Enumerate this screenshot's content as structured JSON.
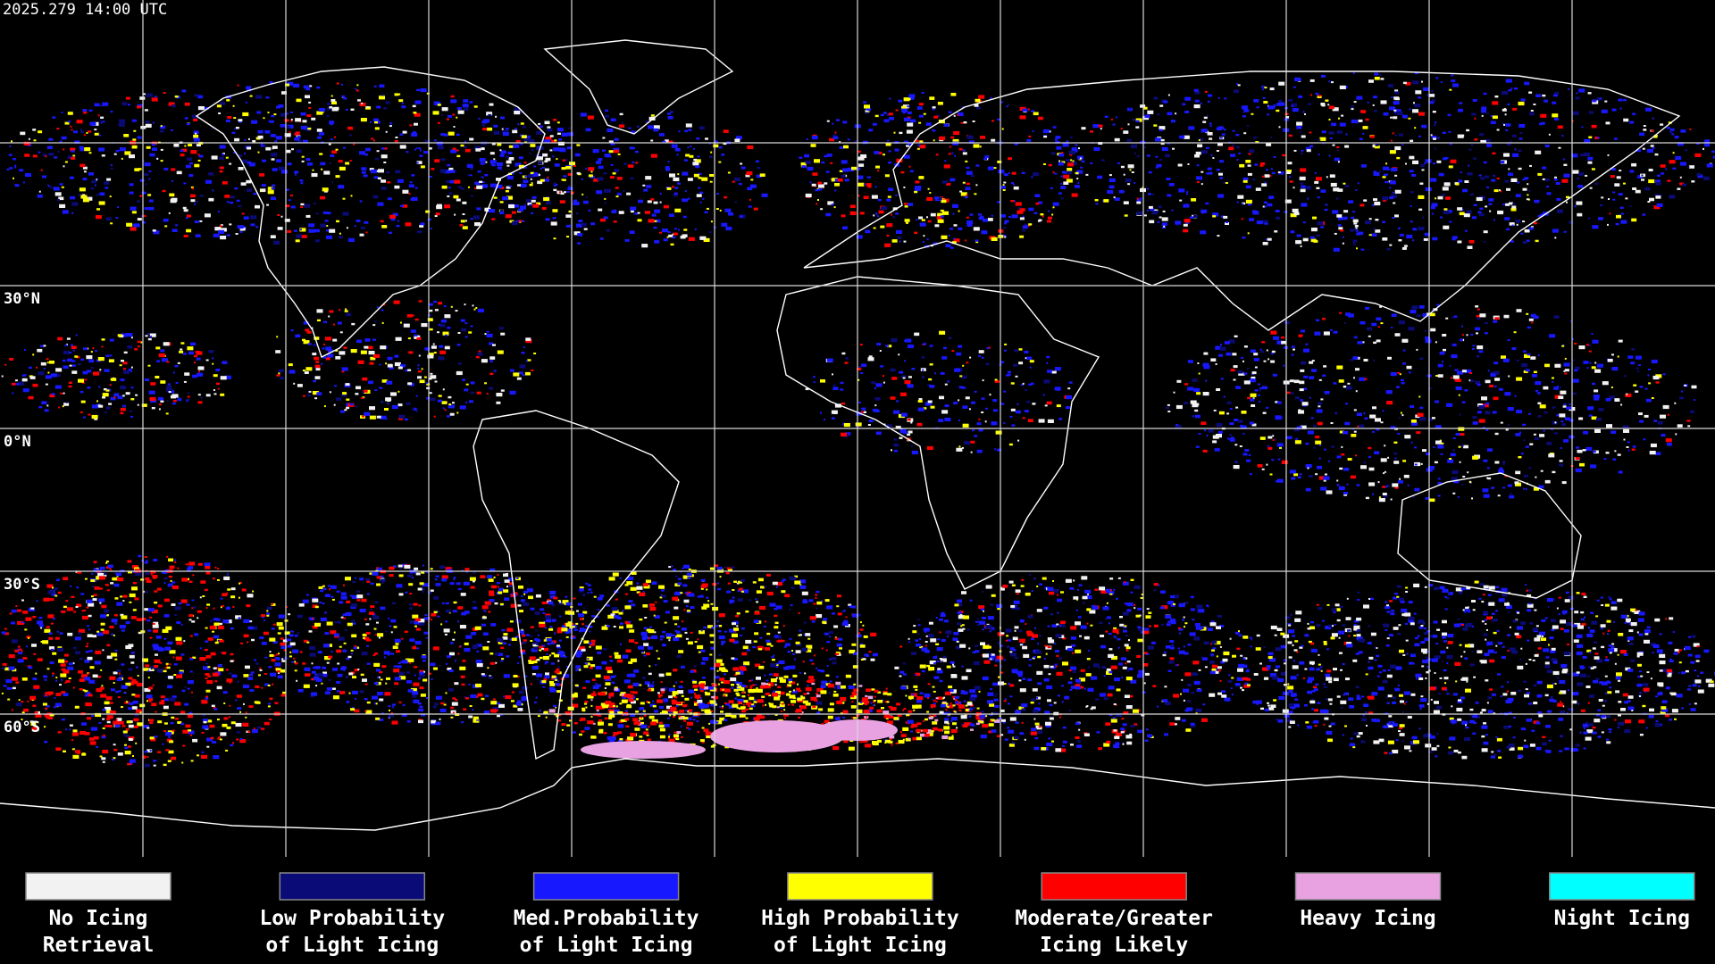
{
  "header": {
    "timestamp": "2025.279 14:00 UTC"
  },
  "map": {
    "latitude_labels": [
      "30°N",
      "0°N",
      "30°S",
      "60°S"
    ]
  },
  "legend": {
    "items": [
      {
        "lines": [
          "No Icing",
          "Retrieval"
        ],
        "color": "#f2f2f2"
      },
      {
        "lines": [
          "Low Probability",
          "of Light Icing"
        ],
        "color": "#0b0b78"
      },
      {
        "lines": [
          "Med.Probability",
          "of Light Icing"
        ],
        "color": "#1818ff"
      },
      {
        "lines": [
          "High Probability",
          "of Light Icing"
        ],
        "color": "#ffff00"
      },
      {
        "lines": [
          "Moderate/Greater",
          "Icing Likely"
        ],
        "color": "#ff0000"
      },
      {
        "lines": [
          "Heavy Icing"
        ],
        "color": "#e8a2e2"
      },
      {
        "lines": [
          "Night Icing"
        ],
        "color": "#00ffff"
      }
    ]
  }
}
